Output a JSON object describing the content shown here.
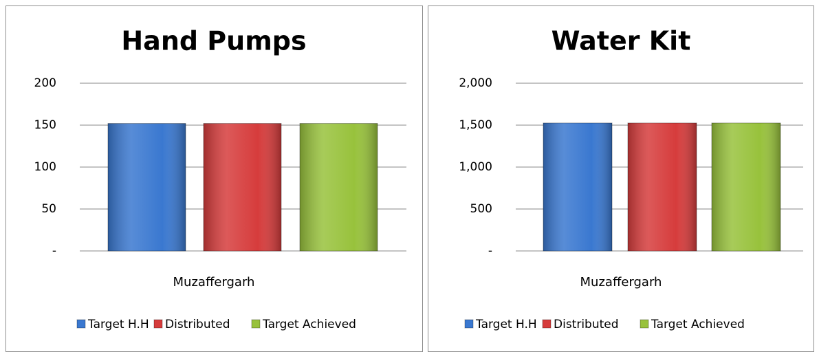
{
  "chart_data": [
    {
      "type": "bar",
      "title": "Hand Pumps",
      "categories": [
        "Muzaffergarh"
      ],
      "series": [
        {
          "name": "Target H.H",
          "color": "#3a78d0",
          "values": [
            152
          ]
        },
        {
          "name": "Distributed",
          "color": "#d63c3c",
          "values": [
            152
          ]
        },
        {
          "name": "Target Achieved",
          "color": "#98c23c",
          "values": [
            152
          ]
        }
      ],
      "ylim": [
        0,
        200
      ],
      "yticks": [
        {
          "value": 0,
          "label": "-"
        },
        50,
        100,
        150,
        200
      ],
      "grid": true,
      "legend": "bottom"
    },
    {
      "type": "bar",
      "title": "Water Kit",
      "categories": [
        "Muzaffergarh"
      ],
      "series": [
        {
          "name": "Target H.H",
          "color": "#3a78d0",
          "values": [
            1525
          ]
        },
        {
          "name": "Distributed",
          "color": "#d63c3c",
          "values": [
            1525
          ]
        },
        {
          "name": "Target Achieved",
          "color": "#98c23c",
          "values": [
            1525
          ]
        }
      ],
      "ylim": [
        0,
        2000
      ],
      "yticks": [
        {
          "value": 0,
          "label": "-"
        },
        500,
        {
          "value": 1000,
          "label": "1,000"
        },
        {
          "value": 1500,
          "label": "1,500"
        },
        {
          "value": 2000,
          "label": "2,000"
        }
      ],
      "grid": true,
      "legend": "bottom"
    }
  ]
}
